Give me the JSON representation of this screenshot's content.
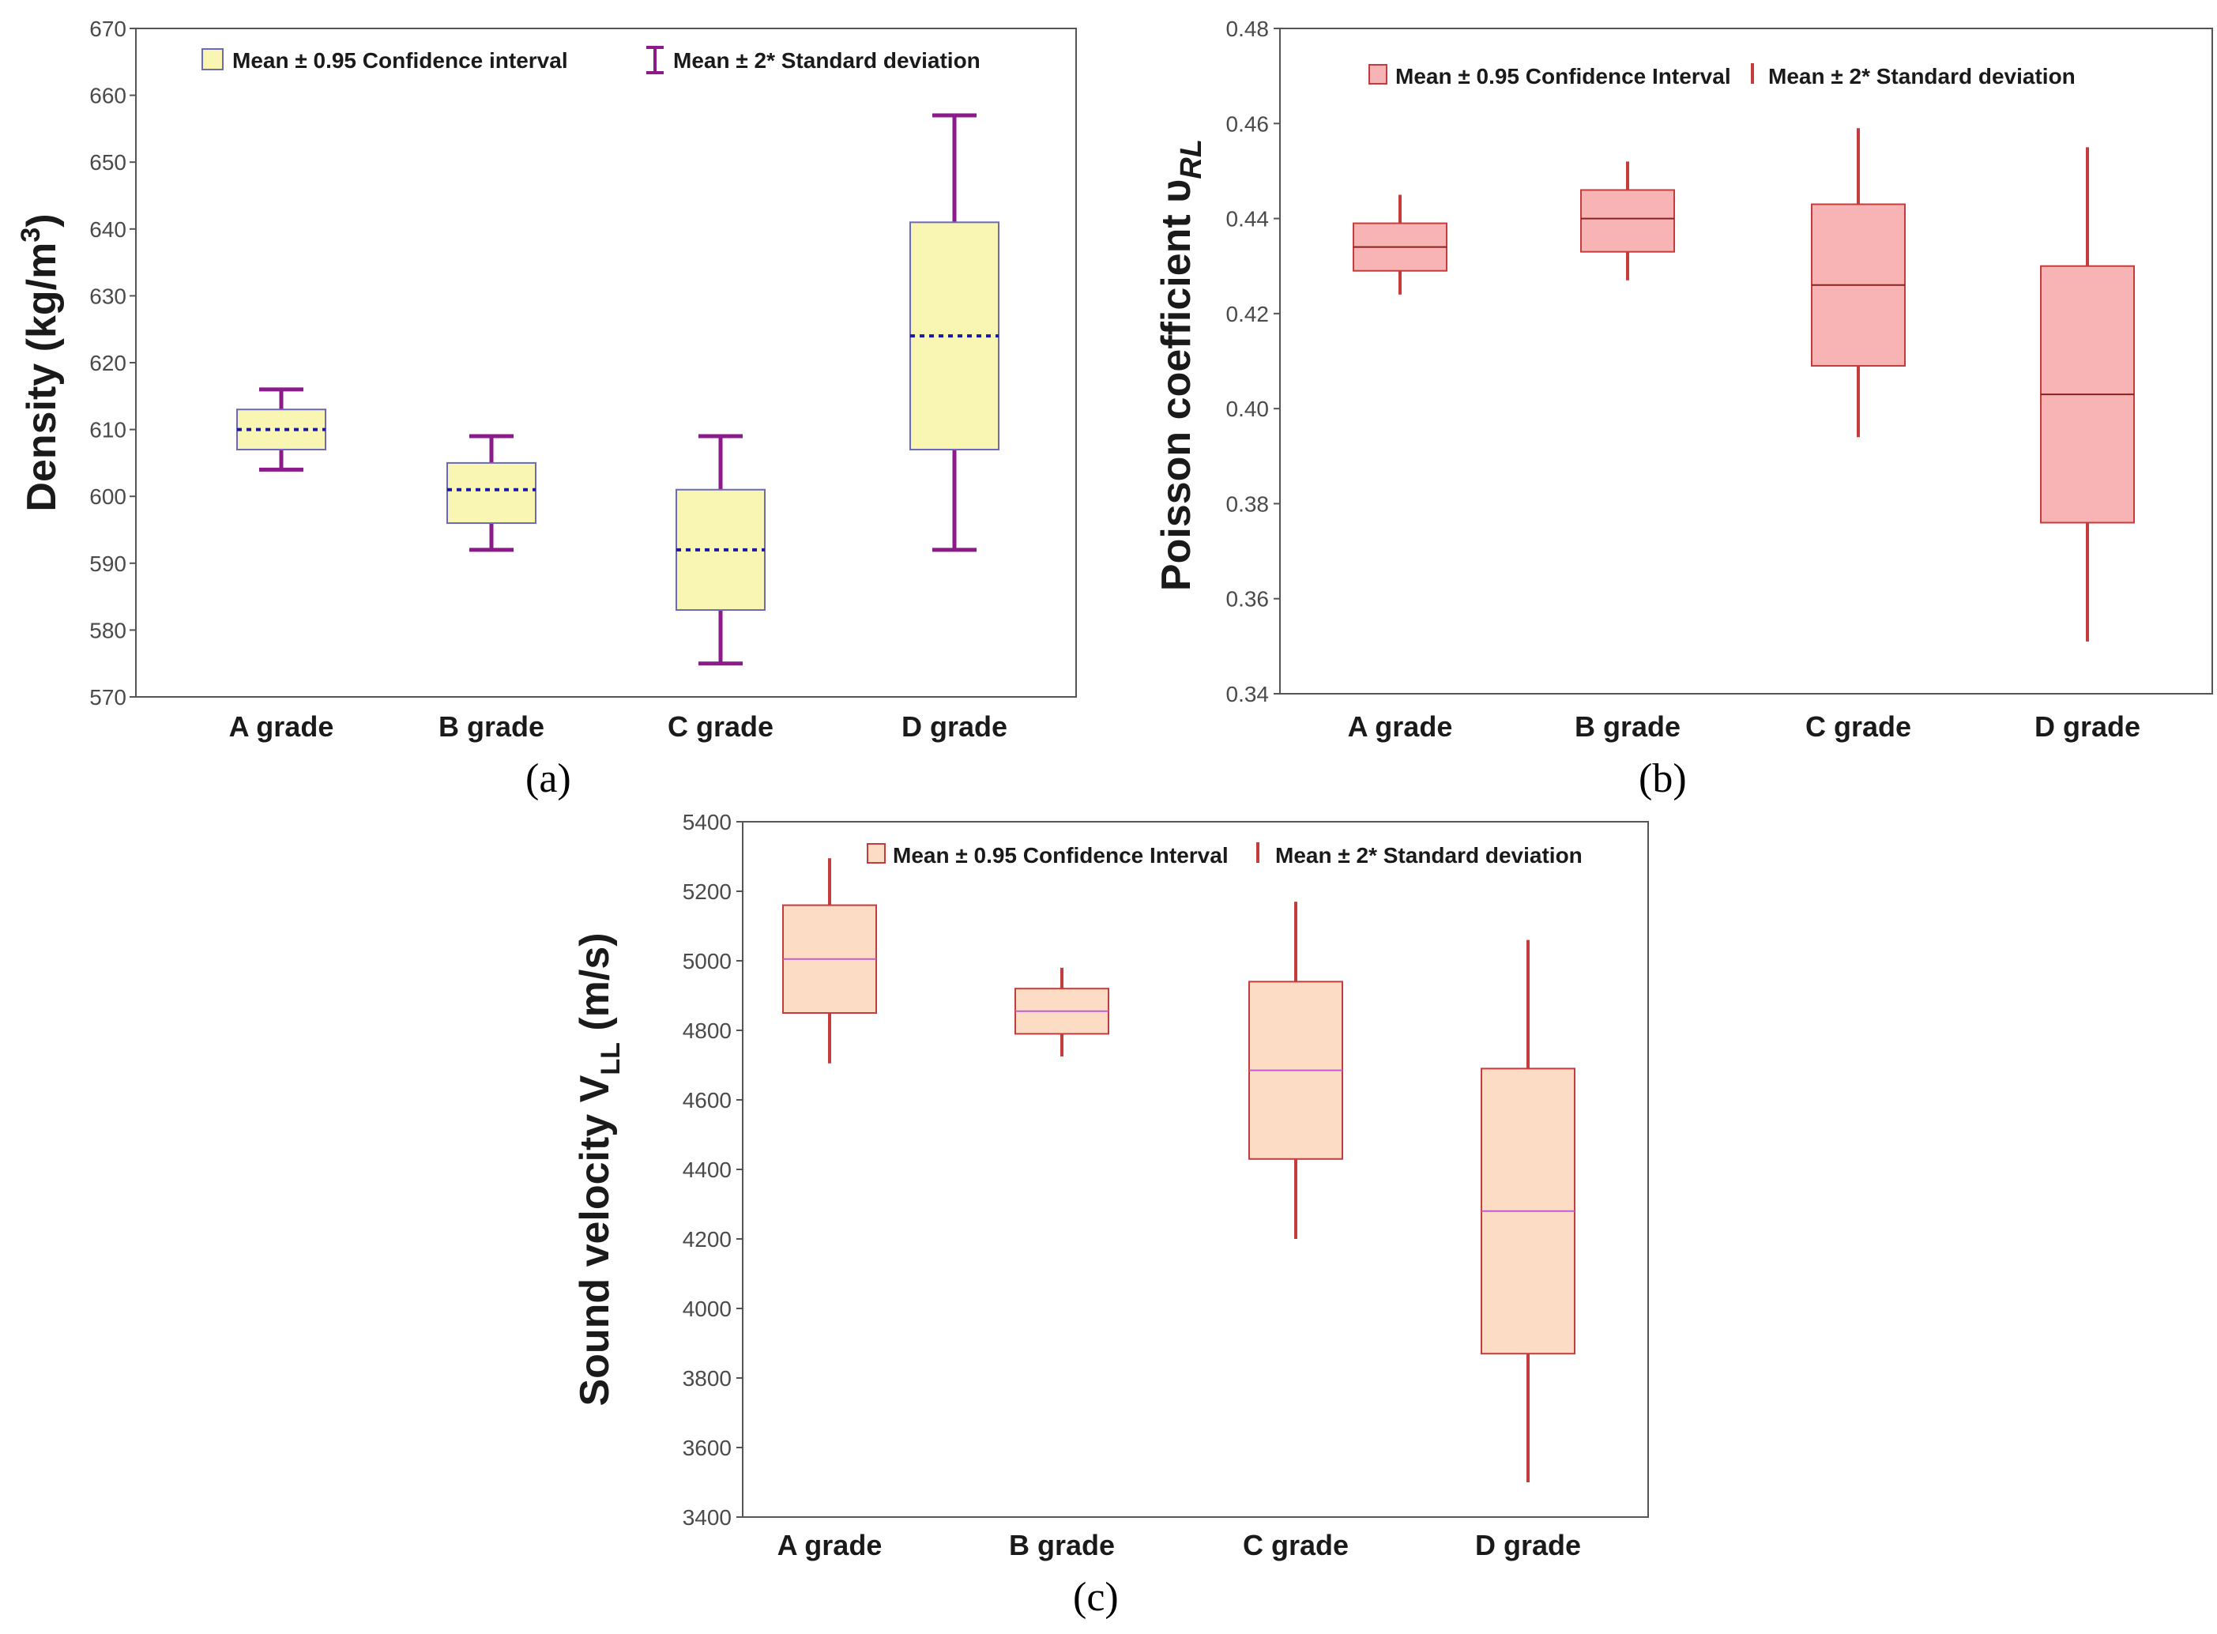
{
  "chart_data": [
    {
      "type": "box",
      "panel_label": "(a)",
      "ylabel": "Density (kg/m³)",
      "ylim": [
        570,
        670
      ],
      "yticks": [
        "570",
        "580",
        "590",
        "600",
        "610",
        "620",
        "630",
        "640",
        "650",
        "660",
        "670"
      ],
      "categories": [
        "A grade",
        "B grade",
        "C grade",
        "D grade"
      ],
      "legend": {
        "box": "Mean ± 0.95 Confidence interval",
        "whisker": "Mean ± 2* Standard deviation"
      },
      "series": [
        {
          "name": "A grade",
          "mean": 610,
          "ci": [
            607,
            613
          ],
          "sd2": [
            604,
            616
          ]
        },
        {
          "name": "B grade",
          "mean": 601,
          "ci": [
            596,
            605
          ],
          "sd2": [
            592,
            609
          ]
        },
        {
          "name": "C grade",
          "mean": 592,
          "ci": [
            583,
            601
          ],
          "sd2": [
            575,
            609
          ]
        },
        {
          "name": "D grade",
          "mean": 624,
          "ci": [
            607,
            641
          ],
          "sd2": [
            592,
            657
          ]
        }
      ],
      "colors": {
        "fill": "#f9f5b2",
        "stroke": "#6a6ab8",
        "whisker": "#8b1a8b",
        "mean": "#1a1aa0"
      }
    },
    {
      "type": "box",
      "panel_label": "(b)",
      "ylabel": "Poisson coefficient υRL",
      "ylim": [
        0.34,
        0.48
      ],
      "yticks": [
        "0.34",
        "0.36",
        "0.38",
        "0.40",
        "0.42",
        "0.44",
        "0.46",
        "0.48"
      ],
      "categories": [
        "A grade",
        "B grade",
        "C grade",
        "D grade"
      ],
      "legend": {
        "box": "Mean ± 0.95 Confidence Interval",
        "whisker": "Mean ± 2* Standard deviation"
      },
      "series": [
        {
          "name": "A grade",
          "mean": 0.434,
          "ci": [
            0.429,
            0.439
          ],
          "sd2": [
            0.424,
            0.445
          ]
        },
        {
          "name": "B grade",
          "mean": 0.44,
          "ci": [
            0.433,
            0.446
          ],
          "sd2": [
            0.427,
            0.452
          ]
        },
        {
          "name": "C grade",
          "mean": 0.426,
          "ci": [
            0.409,
            0.443
          ],
          "sd2": [
            0.394,
            0.459
          ]
        },
        {
          "name": "D grade",
          "mean": 0.403,
          "ci": [
            0.376,
            0.43
          ],
          "sd2": [
            0.351,
            0.455
          ]
        }
      ],
      "colors": {
        "fill": "#f8b4b4",
        "stroke": "#c43c3c",
        "whisker": "#c43c3c",
        "mean": "#8b2020"
      }
    },
    {
      "type": "box",
      "panel_label": "(c)",
      "ylabel": "Sound velocity VLL (m/s)",
      "ylim": [
        3400,
        5400
      ],
      "yticks": [
        "3400",
        "3600",
        "3800",
        "4000",
        "4200",
        "4400",
        "4600",
        "4800",
        "5000",
        "5200",
        "5400"
      ],
      "categories": [
        "A grade",
        "B grade",
        "C grade",
        "D grade"
      ],
      "legend": {
        "box": "Mean ± 0.95 Confidence Interval",
        "whisker": "Mean ± 2* Standard deviation"
      },
      "series": [
        {
          "name": "A grade",
          "mean": 5005,
          "ci": [
            4850,
            5160
          ],
          "sd2": [
            4705,
            5295
          ]
        },
        {
          "name": "B grade",
          "mean": 4855,
          "ci": [
            4790,
            4920
          ],
          "sd2": [
            4725,
            4980
          ]
        },
        {
          "name": "C grade",
          "mean": 4685,
          "ci": [
            4430,
            4940
          ],
          "sd2": [
            4200,
            5170
          ]
        },
        {
          "name": "D grade",
          "mean": 4280,
          "ci": [
            3870,
            4690
          ],
          "sd2": [
            3500,
            5060
          ]
        }
      ],
      "colors": {
        "fill": "#fcdcc4",
        "stroke": "#c43c3c",
        "whisker": "#c43c3c",
        "mean": "#c45cd4"
      }
    }
  ]
}
